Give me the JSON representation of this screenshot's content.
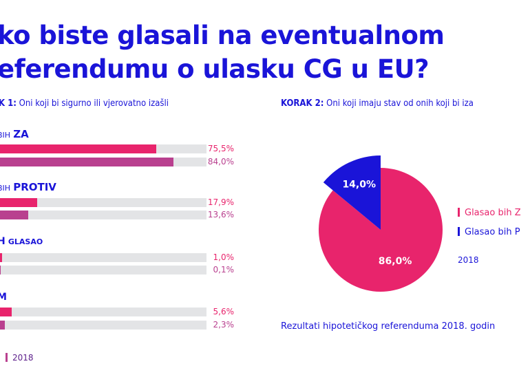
{
  "title_line1": "ko biste glasali na eventualnom",
  "title_line2": "eferendumu o ulasku CG u EU?",
  "step1": {
    "label": "K 1:",
    "text": "Oni koji bi sigurno ili vjerovatno izašli"
  },
  "step2": {
    "label": "KORAK 2:",
    "text": "Oni koji imaju stav od onih koji bi iza"
  },
  "colors": {
    "blue": "#1a14d8",
    "pink": "#e8246c",
    "magenta": "#b9408f",
    "track": "#e3e4e6"
  },
  "chart_data": [
    {
      "type": "bar",
      "groups": [
        {
          "prefix": "BIH",
          "main": "ZA",
          "values": [
            75.5,
            84.0
          ],
          "labels": [
            "75,5%",
            "84,0%"
          ]
        },
        {
          "prefix": "BIH",
          "main": "PROTIV",
          "values": [
            17.9,
            13.6
          ],
          "labels": [
            "17,9%",
            "13,6%"
          ]
        },
        {
          "prefix": "H",
          "main": "GLASAO",
          "values": [
            1.0,
            0.1
          ],
          "labels": [
            "1,0%",
            "0,1%"
          ]
        },
        {
          "prefix": "M",
          "main": "",
          "values": [
            5.6,
            2.3
          ],
          "labels": [
            "5,6%",
            "2,3%"
          ]
        }
      ],
      "legend": [
        "2018"
      ],
      "xlim": [
        0,
        100
      ]
    },
    {
      "type": "pie",
      "slices": [
        {
          "name": "Glasao bih Z",
          "value": 86.0,
          "label": "86,0%",
          "color": "#e8246c"
        },
        {
          "name": "Glasao bih P",
          "value": 14.0,
          "label": "14,0%",
          "color": "#1a14d8"
        }
      ],
      "legend_year": "2018"
    }
  ],
  "note": "Rezultati hipotetičkog referenduma 2018. godin"
}
